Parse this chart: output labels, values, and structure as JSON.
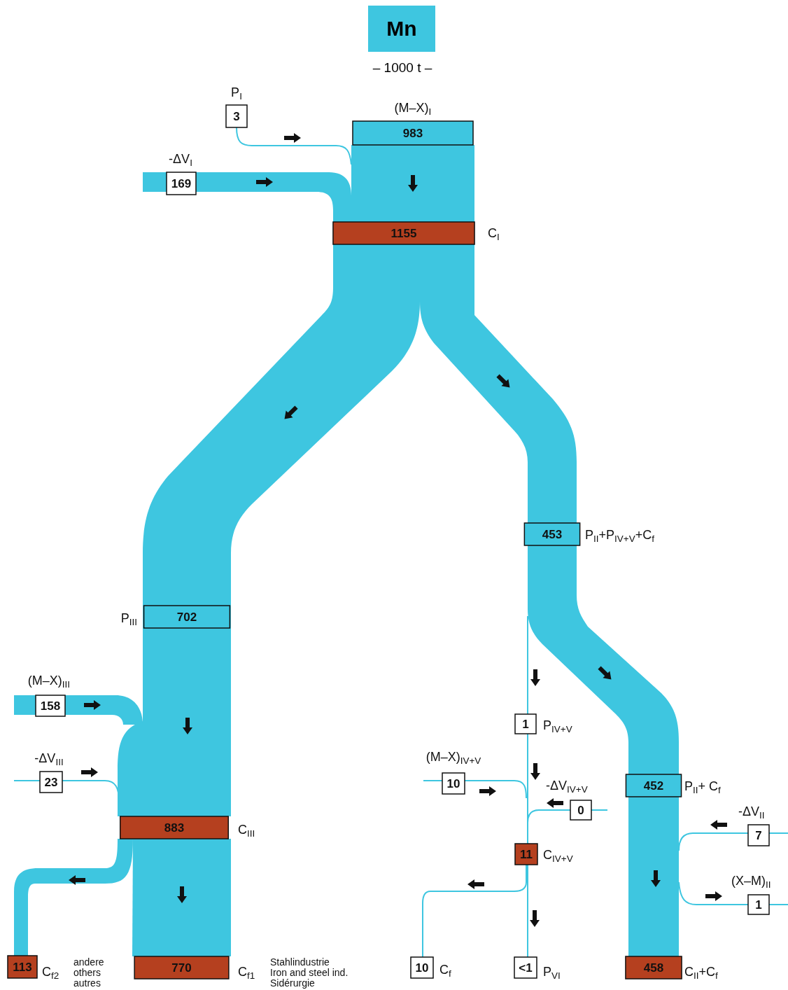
{
  "chart_data": {
    "type": "other",
    "title": "Mn",
    "subtitle": "– 1000 t –",
    "categories": [
      "P$_{I}$",
      "(M–X)$_{I}$",
      "-ΔV$_{I}$",
      "C$_{I}$",
      "P$_{II}$+P$_{IV+V}$+C$_{f}$",
      "P$_{III}$",
      "(M–X)$_{III}$",
      "-ΔV$_{III}$",
      "C$_{III}$",
      "C$_{f2}$",
      "C$_{f1}$",
      "P$_{IV+V}$",
      "(M–X)$_{IV+V}$",
      "-ΔV$_{IV+V}$",
      "C$_{IV+V}$",
      "C$_{f}$",
      "P$_{VI}$",
      "P$_{II}$+ C$_{f}$",
      "-ΔV$_{II}$",
      "(X–M)$_{II}$",
      "C$_{II}$+C$_{f}$"
    ],
    "values": [
      3,
      983,
      169,
      1155,
      453,
      702,
      158,
      23,
      883,
      113,
      770,
      1,
      10,
      0,
      11,
      10,
      1,
      452,
      7,
      1,
      458
    ],
    "value_labels": [
      "3",
      "983",
      "169",
      "1155",
      "453",
      "702",
      "158",
      "23",
      "883",
      "113",
      "770",
      "1",
      "10",
      "0",
      "11",
      "10",
      "<1",
      "452",
      "7",
      "1",
      "458"
    ],
    "colors": [
      "#ffffff",
      "#3ec6e0",
      "#ffffff",
      "#b5401f",
      "#3ec6e0",
      "#3ec6e0",
      "#ffffff",
      "#ffffff",
      "#b5401f",
      "#b5401f",
      "#b5401f",
      "#ffffff",
      "#ffffff",
      "#ffffff",
      "#b5401f",
      "#ffffff",
      "#ffffff",
      "#3ec6e0",
      "#ffffff",
      "#ffffff",
      "#b5401f"
    ],
    "annotations": [
      "andere",
      "others",
      "autres",
      "Stahlindustrie",
      "Iron and steel ind.",
      "Sidérurgie"
    ]
  }
}
